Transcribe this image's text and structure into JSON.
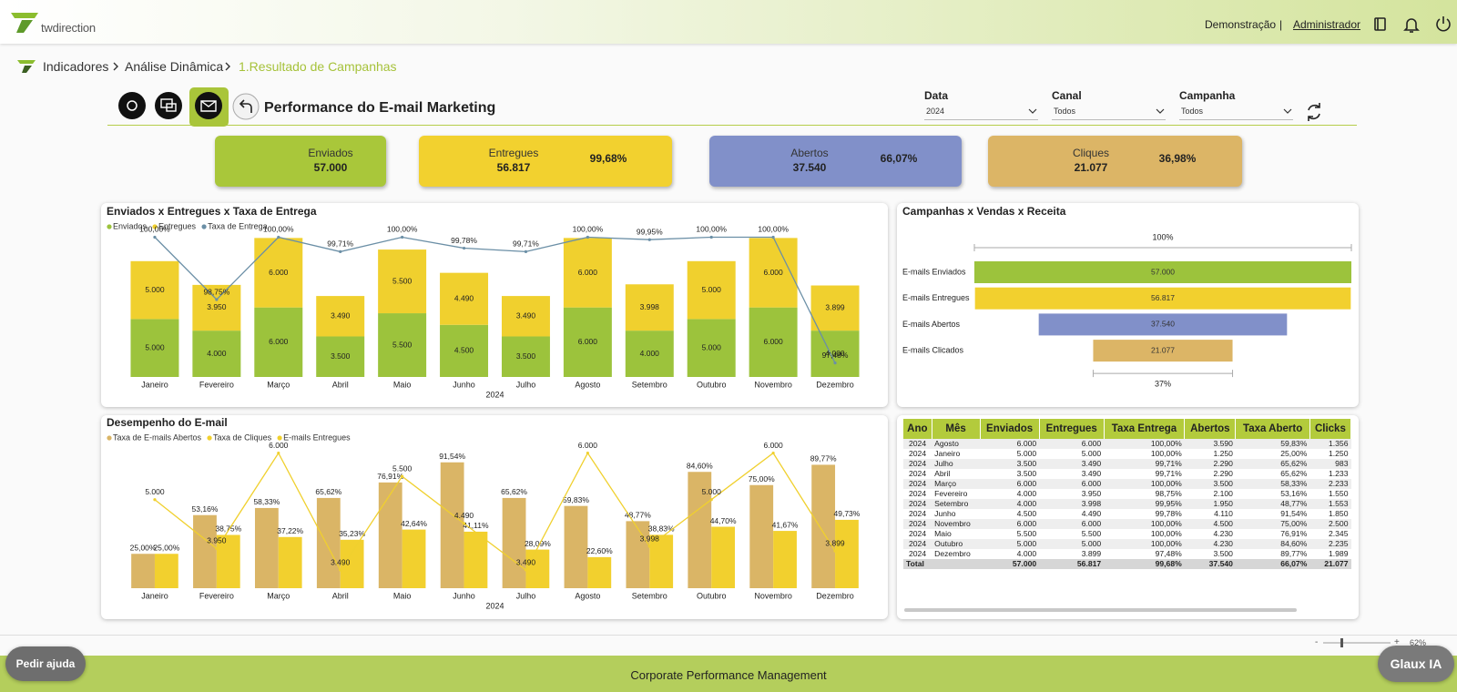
{
  "header": {
    "logo": "twdirection",
    "company": "Demonstração",
    "separator": "|",
    "user": "Administrador"
  },
  "breadcrumb": [
    "Indicadores",
    "Análise Dinâmica",
    "1.Resultado de Campanhas"
  ],
  "page_title": "Performance do E-mail Marketing",
  "filters": [
    {
      "label": "Data",
      "value": "2024"
    },
    {
      "label": "Canal",
      "value": "Todos"
    },
    {
      "label": "Campanha",
      "value": "Todos"
    }
  ],
  "kpis": [
    {
      "label": "Enviados",
      "value": "57.000",
      "color": "#a9c73a"
    },
    {
      "label": "Entregues",
      "value": "56.817",
      "rate": "99,68%",
      "color": "#f2d12f"
    },
    {
      "label": "Abertos",
      "value": "37.540",
      "rate": "66,07%",
      "color": "#8190c9"
    },
    {
      "label": "Cliques",
      "value": "21.077",
      "rate": "36,98%",
      "color": "#dcb566"
    }
  ],
  "chart_data": [
    {
      "type": "combo",
      "title": "Enviados x Entregues x Taxa de Entrega",
      "x_label": "2024",
      "stacked": true,
      "categories": [
        "Janeiro",
        "Fevereiro",
        "Março",
        "Abril",
        "Maio",
        "Junho",
        "Julho",
        "Agosto",
        "Setembro",
        "Outubro",
        "Novembro",
        "Dezembro"
      ],
      "ylim": [
        0,
        12500
      ],
      "y2lim": [
        97.2,
        100.1
      ],
      "series": [
        {
          "name": "Enviados",
          "type": "bar",
          "color": "#9cc33c",
          "values": [
            5000,
            4000,
            6000,
            3500,
            5500,
            4500,
            3500,
            6000,
            4000,
            5000,
            6000,
            4000
          ],
          "value_labels": [
            "5.000",
            "4.000",
            "6.000",
            "3.500",
            "5.500",
            "4.500",
            "3.500",
            "6.000",
            "4.000",
            "5.000",
            "6.000",
            "4.000"
          ]
        },
        {
          "name": "Entregues",
          "type": "bar",
          "color": "#f0d02e",
          "values": [
            5000,
            3950,
            6000,
            3490,
            5500,
            4490,
            3490,
            6000,
            3998,
            5000,
            6000,
            3899
          ],
          "value_labels": [
            "5.000",
            "3.950",
            "6.000",
            "3.490",
            "5.500",
            "4.490",
            "3.490",
            "6.000",
            "3.998",
            "5.000",
            "6.000",
            "3.899"
          ]
        },
        {
          "name": "Taxa de Entrega",
          "type": "line",
          "axis": "y2",
          "color": "#6b8fa6",
          "values": [
            100.0,
            98.75,
            100.0,
            99.71,
            100.0,
            99.78,
            99.71,
            100.0,
            99.95,
            100.0,
            100.0,
            97.48
          ],
          "value_labels": [
            "100,00%",
            "98,75%",
            "100,00%",
            "99,71%",
            "100,00%",
            "99,78%",
            "99,71%",
            "100,00%",
            "99,95%",
            "100,00%",
            "100,00%",
            "97,48%"
          ]
        }
      ]
    },
    {
      "type": "combo",
      "title": "Desempenho do E-mail",
      "x_label": "2024",
      "stacked": false,
      "categories": [
        "Janeiro",
        "Fevereiro",
        "Março",
        "Abril",
        "Maio",
        "Junho",
        "Julho",
        "Agosto",
        "Setembro",
        "Outubro",
        "Novembro",
        "Dezembro"
      ],
      "ylim": [
        0,
        100
      ],
      "y2lim": [
        3100,
        6050
      ],
      "series": [
        {
          "name": "Taxa de E-mails Abertos",
          "type": "bar",
          "color": "#dab566",
          "values": [
            25.0,
            53.16,
            58.33,
            65.62,
            76.91,
            91.54,
            65.62,
            59.83,
            48.77,
            84.6,
            75.0,
            89.77
          ],
          "value_labels": [
            "25,00%",
            "53,16%",
            "58,33%",
            "65,62%",
            "76,91%",
            "91,54%",
            "65,62%",
            "59,83%",
            "48,77%",
            "84,60%",
            "75,00%",
            "89,77%"
          ]
        },
        {
          "name": "Taxa de Cliques",
          "type": "bar",
          "color": "#f2d02e",
          "values": [
            25.0,
            38.75,
            37.22,
            35.23,
            42.64,
            41.11,
            28.09,
            22.6,
            38.83,
            44.7,
            41.67,
            49.73
          ],
          "value_labels": [
            "25,00%",
            "38,75%",
            "37,22%",
            "35,23%",
            "42,64%",
            "41,11%",
            "28,09%",
            "22,60%",
            "38,83%",
            "44,70%",
            "41,67%",
            "49,73%"
          ]
        },
        {
          "name": "E-mails Entregues",
          "type": "line",
          "axis": "y2",
          "color": "#f0d02e",
          "values": [
            5000,
            3950,
            6000,
            3490,
            5500,
            4490,
            3490,
            6000,
            3998,
            5000,
            6000,
            3899
          ],
          "value_labels": [
            "5.000",
            "3.950",
            "6.000",
            "3.490",
            "5.500",
            "4.490",
            "3.490",
            "6.000",
            "3.998",
            "5.000",
            "6.000",
            "3.899"
          ]
        }
      ]
    },
    {
      "type": "funnel",
      "title": "Campanhas x Vendas x Receita",
      "top_label": "100%",
      "bottom_label": "37%",
      "categories": [
        "E-mails Enviados",
        "E-mails Entregues",
        "E-mails Abertos",
        "E-mails Clicados"
      ],
      "values": [
        57000,
        56817,
        37540,
        21077
      ],
      "value_labels": [
        "57.000",
        "56.817",
        "37.540",
        "21.077"
      ],
      "colors": [
        "#9cc33c",
        "#f2d02e",
        "#8190c9",
        "#dcb566"
      ],
      "xlim": [
        0,
        57000
      ]
    }
  ],
  "table": {
    "columns": [
      "Ano",
      "Mês",
      "Enviados",
      "Entregues",
      "Taxa Entrega",
      "Abertos",
      "Taxa Aberto",
      "Clicks"
    ],
    "rows": [
      [
        "2024",
        "Agosto",
        "6.000",
        "6.000",
        "100,00%",
        "3.590",
        "59,83%",
        "1.356"
      ],
      [
        "2024",
        "Janeiro",
        "5.000",
        "5.000",
        "100,00%",
        "1.250",
        "25,00%",
        "1.250"
      ],
      [
        "2024",
        "Julho",
        "3.500",
        "3.490",
        "99,71%",
        "2.290",
        "65,62%",
        "983"
      ],
      [
        "2024",
        "Abril",
        "3.500",
        "3.490",
        "99,71%",
        "2.290",
        "65,62%",
        "1.233"
      ],
      [
        "2024",
        "Março",
        "6.000",
        "6.000",
        "100,00%",
        "3.500",
        "58,33%",
        "2.233"
      ],
      [
        "2024",
        "Fevereiro",
        "4.000",
        "3.950",
        "98,75%",
        "2.100",
        "53,16%",
        "1.550"
      ],
      [
        "2024",
        "Setembro",
        "4.000",
        "3.998",
        "99,95%",
        "1.950",
        "48,77%",
        "1.553"
      ],
      [
        "2024",
        "Junho",
        "4.500",
        "4.490",
        "99,78%",
        "4.110",
        "91,54%",
        "1.850"
      ],
      [
        "2024",
        "Novembro",
        "6.000",
        "6.000",
        "100,00%",
        "4.500",
        "75,00%",
        "2.500"
      ],
      [
        "2024",
        "Maio",
        "5.500",
        "5.500",
        "100,00%",
        "4.230",
        "76,91%",
        "2.345"
      ],
      [
        "2024",
        "Outubro",
        "5.000",
        "5.000",
        "100,00%",
        "4.230",
        "84,60%",
        "2.235"
      ],
      [
        "2024",
        "Dezembro",
        "4.000",
        "3.899",
        "97,48%",
        "3.500",
        "89,77%",
        "1.989"
      ]
    ],
    "total": {
      "label": "Total",
      "cells": [
        "57.000",
        "56.817",
        "99,68%",
        "37.540",
        "66,07%",
        "21.077"
      ]
    }
  },
  "footer": {
    "title": "Corporate Performance Management",
    "help": "Pedir ajuda",
    "assistant": "Glaux IA",
    "zoom_out": "-",
    "zoom_in": "+",
    "zoom": "62%"
  }
}
